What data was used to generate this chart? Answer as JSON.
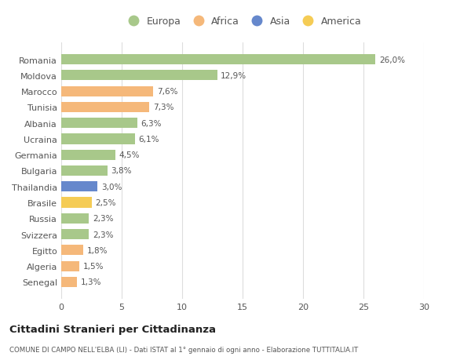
{
  "countries": [
    "Romania",
    "Moldova",
    "Marocco",
    "Tunisia",
    "Albania",
    "Ucraina",
    "Germania",
    "Bulgaria",
    "Thailandia",
    "Brasile",
    "Russia",
    "Svizzera",
    "Egitto",
    "Algeria",
    "Senegal"
  ],
  "values": [
    26.0,
    12.9,
    7.6,
    7.3,
    6.3,
    6.1,
    4.5,
    3.8,
    3.0,
    2.5,
    2.3,
    2.3,
    1.8,
    1.5,
    1.3
  ],
  "labels": [
    "26,0%",
    "12,9%",
    "7,6%",
    "7,3%",
    "6,3%",
    "6,1%",
    "4,5%",
    "3,8%",
    "3,0%",
    "2,5%",
    "2,3%",
    "2,3%",
    "1,8%",
    "1,5%",
    "1,3%"
  ],
  "colors": [
    "#a8c88a",
    "#a8c88a",
    "#f5b87a",
    "#f5b87a",
    "#a8c88a",
    "#a8c88a",
    "#a8c88a",
    "#a8c88a",
    "#6688cc",
    "#f5cc55",
    "#a8c88a",
    "#a8c88a",
    "#f5b87a",
    "#f5b87a",
    "#f5b87a"
  ],
  "legend_labels": [
    "Europa",
    "Africa",
    "Asia",
    "America"
  ],
  "legend_colors": [
    "#a8c88a",
    "#f5b87a",
    "#6688cc",
    "#f5cc55"
  ],
  "title": "Cittadini Stranieri per Cittadinanza",
  "subtitle": "COMUNE DI CAMPO NELL'ELBA (LI) - Dati ISTAT al 1° gennaio di ogni anno - Elaborazione TUTTITALIA.IT",
  "xlim": [
    0,
    30
  ],
  "xticks": [
    0,
    5,
    10,
    15,
    20,
    25,
    30
  ],
  "background_color": "#ffffff",
  "grid_color": "#dddddd"
}
